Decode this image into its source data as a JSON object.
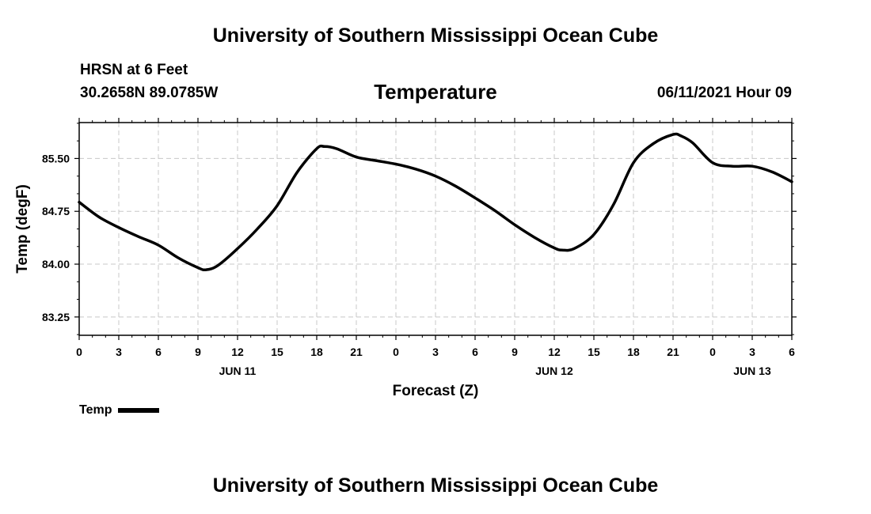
{
  "header": {
    "title": "University of Southern Mississippi Ocean Cube",
    "station": "HRSN at 6 Feet",
    "coordinates": "30.2658N  89.0785W",
    "chart_title": "Temperature",
    "issued": "06/11/2021 Hour 09"
  },
  "footer": {
    "title": "University of Southern Mississippi Ocean Cube"
  },
  "legend": {
    "label": "Temp",
    "color": "#000000"
  },
  "chart_data": {
    "type": "line",
    "title": "Temperature",
    "xlabel": "Forecast (Z)",
    "ylabel": "Temp (degF)",
    "xlim": [
      0,
      54
    ],
    "ylim": [
      82.99,
      86.01
    ],
    "grid": true,
    "x_ticks": [
      0,
      3,
      6,
      9,
      12,
      15,
      18,
      21,
      24,
      27,
      30,
      33,
      36,
      39,
      42,
      45,
      48,
      51,
      54
    ],
    "x_tick_labels": [
      "0",
      "3",
      "6",
      "9",
      "12",
      "15",
      "18",
      "21",
      "0",
      "3",
      "6",
      "9",
      "12",
      "15",
      "18",
      "21",
      "0",
      "3",
      "6"
    ],
    "date_labels": [
      {
        "x": 12,
        "label": "JUN 11"
      },
      {
        "x": 36,
        "label": "JUN 12"
      },
      {
        "x": 51,
        "label": "JUN 13"
      }
    ],
    "y_ticks": [
      83.25,
      84.0,
      84.75,
      85.5
    ],
    "y_tick_labels": [
      "83.25",
      "84.00",
      "84.75",
      "85.50"
    ],
    "series": [
      {
        "name": "Temp",
        "x": [
          0,
          1.5,
          3,
          4.5,
          6,
          7.5,
          9,
          9.6,
          10.5,
          12,
          13.5,
          15,
          16.5,
          18,
          18.6,
          19.5,
          21,
          22.5,
          24,
          25.5,
          27,
          28.5,
          30,
          31.5,
          33,
          34.5,
          36,
          36.6,
          37.5,
          39,
          40.5,
          42,
          43.5,
          45,
          45.6,
          46.5,
          48,
          49.5,
          51,
          52.5,
          54
        ],
        "values": [
          84.88,
          84.67,
          84.52,
          84.39,
          84.27,
          84.09,
          83.95,
          83.92,
          83.98,
          84.22,
          84.5,
          84.83,
          85.3,
          85.64,
          85.67,
          85.64,
          85.52,
          85.47,
          85.42,
          85.35,
          85.25,
          85.11,
          84.94,
          84.76,
          84.56,
          84.38,
          84.23,
          84.2,
          84.22,
          84.42,
          84.85,
          85.44,
          85.71,
          85.84,
          85.82,
          85.72,
          85.44,
          85.39,
          85.39,
          85.31,
          85.17
        ]
      }
    ]
  }
}
